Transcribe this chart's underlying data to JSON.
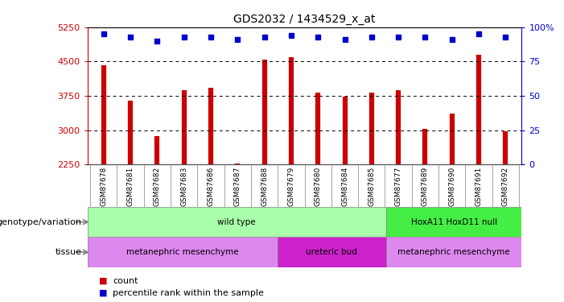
{
  "title": "GDS2032 / 1434529_x_at",
  "samples": [
    "GSM87678",
    "GSM87681",
    "GSM87682",
    "GSM87683",
    "GSM87686",
    "GSM87687",
    "GSM87688",
    "GSM87679",
    "GSM87680",
    "GSM87684",
    "GSM87685",
    "GSM87677",
    "GSM87689",
    "GSM87690",
    "GSM87691",
    "GSM87692"
  ],
  "counts": [
    4420,
    3650,
    2880,
    3880,
    3930,
    2270,
    4540,
    4600,
    3820,
    3740,
    3820,
    3870,
    3030,
    3370,
    4650,
    2970
  ],
  "percentiles": [
    95,
    93,
    90,
    93,
    93,
    91,
    93,
    94,
    93,
    91,
    93,
    93,
    93,
    91,
    95,
    93
  ],
  "ymin": 2250,
  "ymax": 5250,
  "yticks": [
    2250,
    3000,
    3750,
    4500,
    5250
  ],
  "ytick_labels": [
    "2250",
    "3000",
    "3750",
    "4500",
    "5250"
  ],
  "right_yticks": [
    0,
    25,
    50,
    75,
    100
  ],
  "right_ytick_labels": [
    "0",
    "25",
    "50",
    "75",
    "100%"
  ],
  "bar_color": "#cc0000",
  "dot_color": "#0000cc",
  "plot_bg": "#ffffff",
  "xticklabel_bg": "#c8c8c8",
  "genotype_groups": [
    {
      "label": "wild type",
      "start": 0,
      "end": 10,
      "color": "#aaffaa"
    },
    {
      "label": "HoxA11 HoxD11 null",
      "start": 11,
      "end": 15,
      "color": "#44ee44"
    }
  ],
  "tissue_groups": [
    {
      "label": "metanephric mesenchyme",
      "start": 0,
      "end": 6,
      "color": "#dd88ee"
    },
    {
      "label": "ureteric bud",
      "start": 7,
      "end": 10,
      "color": "#cc22cc"
    },
    {
      "label": "metanephric mesenchyme",
      "start": 11,
      "end": 15,
      "color": "#dd88ee"
    }
  ],
  "legend_items": [
    {
      "label": "count",
      "color": "#cc0000"
    },
    {
      "label": "percentile rank within the sample",
      "color": "#0000cc"
    }
  ],
  "label_genotype": "genotype/variation",
  "label_tissue": "tissue"
}
